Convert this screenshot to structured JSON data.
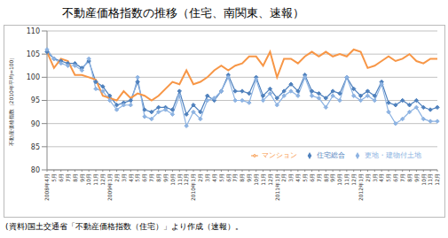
{
  "chart_data": {
    "type": "line",
    "title": "不動産価格指数の推移（住宅、南関東、速報）",
    "y_label": "不動産価格指数（2010年平均=100）",
    "note": "(資料)国土交通省「不動産価格指数（住宅）」より作成（速報）。",
    "categories": [
      "2008年4月",
      "5月",
      "6月",
      "7月",
      "8月",
      "9月",
      "10月",
      "11月",
      "12月",
      "2009年1月",
      "2月",
      "3月",
      "4月",
      "5月",
      "6月",
      "7月",
      "8月",
      "9月",
      "10月",
      "11月",
      "12月",
      "2010年1月",
      "2月",
      "3月",
      "4月",
      "5月",
      "6月",
      "7月",
      "8月",
      "9月",
      "10月",
      "11月",
      "12月",
      "2011年1月",
      "2月",
      "3月",
      "4月",
      "5月",
      "6月",
      "7月",
      "8月",
      "9月",
      "10月",
      "11月",
      "12月",
      "2012年1月",
      "2月",
      "3月",
      "4月",
      "5月",
      "6月",
      "7月",
      "8月",
      "9月",
      "10月",
      "11月",
      "12月"
    ],
    "series": [
      {
        "name": "住宅総合",
        "color": "#4f81bd",
        "marker": "diamond",
        "values": [
          105.5,
          104,
          103.5,
          103,
          103,
          102,
          103.5,
          99,
          98,
          96,
          94,
          94.5,
          95,
          99,
          93,
          92.5,
          93.5,
          93.5,
          93,
          97,
          92,
          94,
          92.5,
          96,
          95,
          97,
          100.5,
          97,
          97,
          96.5,
          100,
          96,
          97.5,
          95.5,
          97,
          98.5,
          97,
          100.5,
          97,
          96.5,
          95.5,
          97,
          96.5,
          100,
          97.5,
          96,
          97,
          96,
          99,
          94.5,
          94,
          95,
          94,
          95,
          93.5,
          93,
          93.5
        ]
      },
      {
        "name": "更地・建物付土地",
        "color": "#8db3e2",
        "marker": "diamond",
        "values": [
          106,
          104,
          103,
          102.5,
          102.5,
          101.5,
          104,
          97.5,
          97,
          95,
          93,
          94,
          94,
          100,
          91.5,
          91,
          92.5,
          93,
          92,
          96,
          89.5,
          92.5,
          91,
          95,
          95.5,
          97,
          100,
          95,
          95,
          94.5,
          99.5,
          95,
          96.5,
          94,
          96,
          97,
          96,
          100,
          96,
          95.5,
          93.5,
          96,
          95,
          100,
          96,
          95,
          96,
          95,
          98.5,
          92.5,
          90,
          91,
          92.5,
          93.5,
          91,
          90.5,
          90.5
        ]
      },
      {
        "name": "マンション",
        "color": "#f79646",
        "marker": "none",
        "values": [
          105.5,
          102,
          104,
          103.5,
          100.5,
          100.5,
          100,
          99.5,
          96,
          95.5,
          95,
          97,
          95.5,
          96.5,
          96,
          95,
          96,
          97.5,
          99,
          98.5,
          101.5,
          98.5,
          99,
          100,
          101.5,
          102.5,
          101.5,
          102.5,
          103,
          104.5,
          104.5,
          102.5,
          105.5,
          100,
          104,
          104,
          103,
          104.5,
          105.5,
          104.5,
          105.5,
          104.5,
          105,
          104.5,
          106,
          105.5,
          102,
          102.5,
          103.5,
          104.5,
          103.5,
          104,
          105,
          103.5,
          103,
          104,
          104
        ]
      }
    ],
    "ylim": [
      80,
      110
    ],
    "yticks": [
      80,
      85,
      90,
      95,
      100,
      105,
      110
    ],
    "grid": true,
    "legend": "lower right"
  }
}
